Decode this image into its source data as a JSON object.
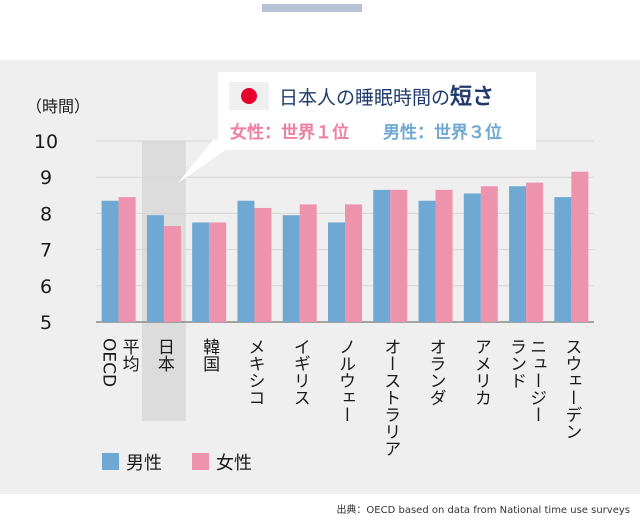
{
  "source": "出典：OECD based on data from National time use surveys",
  "callout": {
    "title_prefix": "日本人の睡眠時間の",
    "title_emph": "短さ",
    "female_rank": "女性：世界１位",
    "male_rank": "男性：世界３位"
  },
  "chart_data": {
    "type": "bar",
    "ylabel": "（時間）",
    "ylim": [
      5,
      10
    ],
    "yticks": [
      5,
      6,
      7,
      8,
      9,
      10
    ],
    "categories": [
      "平均OECD",
      "日本",
      "韓国",
      "メキシコ",
      "イギリス",
      "ノルウェー",
      "オーストラリア",
      "オランダ",
      "アメリカ",
      "ニュージーランド",
      "スウェーデン"
    ],
    "category_lines": [
      [
        "平均",
        "OECD"
      ],
      [
        "日本"
      ],
      [
        "韓国"
      ],
      [
        "メキシコ"
      ],
      [
        "イギリス"
      ],
      [
        "ノルウェー"
      ],
      [
        "オーストラリア"
      ],
      [
        "オランダ"
      ],
      [
        "アメリカ"
      ],
      [
        "ニュージー",
        "ランド"
      ],
      [
        "スウェーデン"
      ]
    ],
    "series": [
      {
        "name": "男性",
        "color": "#6fa8d2",
        "values": [
          8.35,
          7.95,
          7.75,
          8.35,
          7.95,
          7.75,
          8.65,
          8.35,
          8.55,
          8.75,
          8.45
        ]
      },
      {
        "name": "女性",
        "color": "#ee93ad",
        "values": [
          8.45,
          7.65,
          7.75,
          8.15,
          8.25,
          8.25,
          8.65,
          8.65,
          8.75,
          8.85,
          9.15
        ]
      }
    ],
    "highlight_category": "日本",
    "legend": "bottom-left"
  }
}
